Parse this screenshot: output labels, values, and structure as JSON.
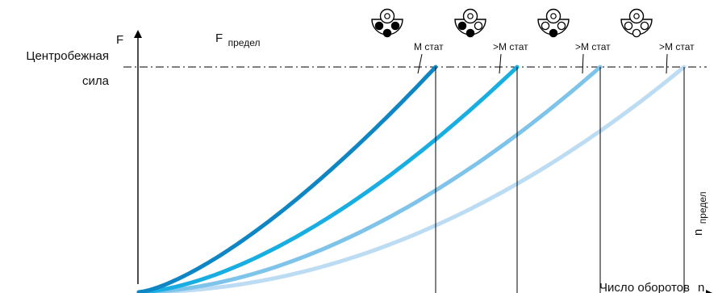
{
  "diagram": {
    "y_axis_letter": "F",
    "y_axis_name_line1": "Центробежная",
    "y_axis_name_line2": "сила",
    "limit_force_main": "F",
    "limit_force_sub": "предел",
    "x_axis_name": "Число оборотов",
    "x_axis_letter": "n",
    "limit_speed_main": "n",
    "limit_speed_sub": "предел",
    "rotor_labels": [
      "M стат",
      ">M стат",
      ">M стат",
      ">M стат"
    ],
    "rotor_weights_filled": [
      3,
      2,
      1,
      0
    ],
    "curve_colors": [
      "#0f86c4",
      "#18aee2",
      "#7ec3e9",
      "#bcdcf3"
    ],
    "curve_exponents": [
      1.4,
      1.6,
      1.8,
      2.0
    ]
  }
}
